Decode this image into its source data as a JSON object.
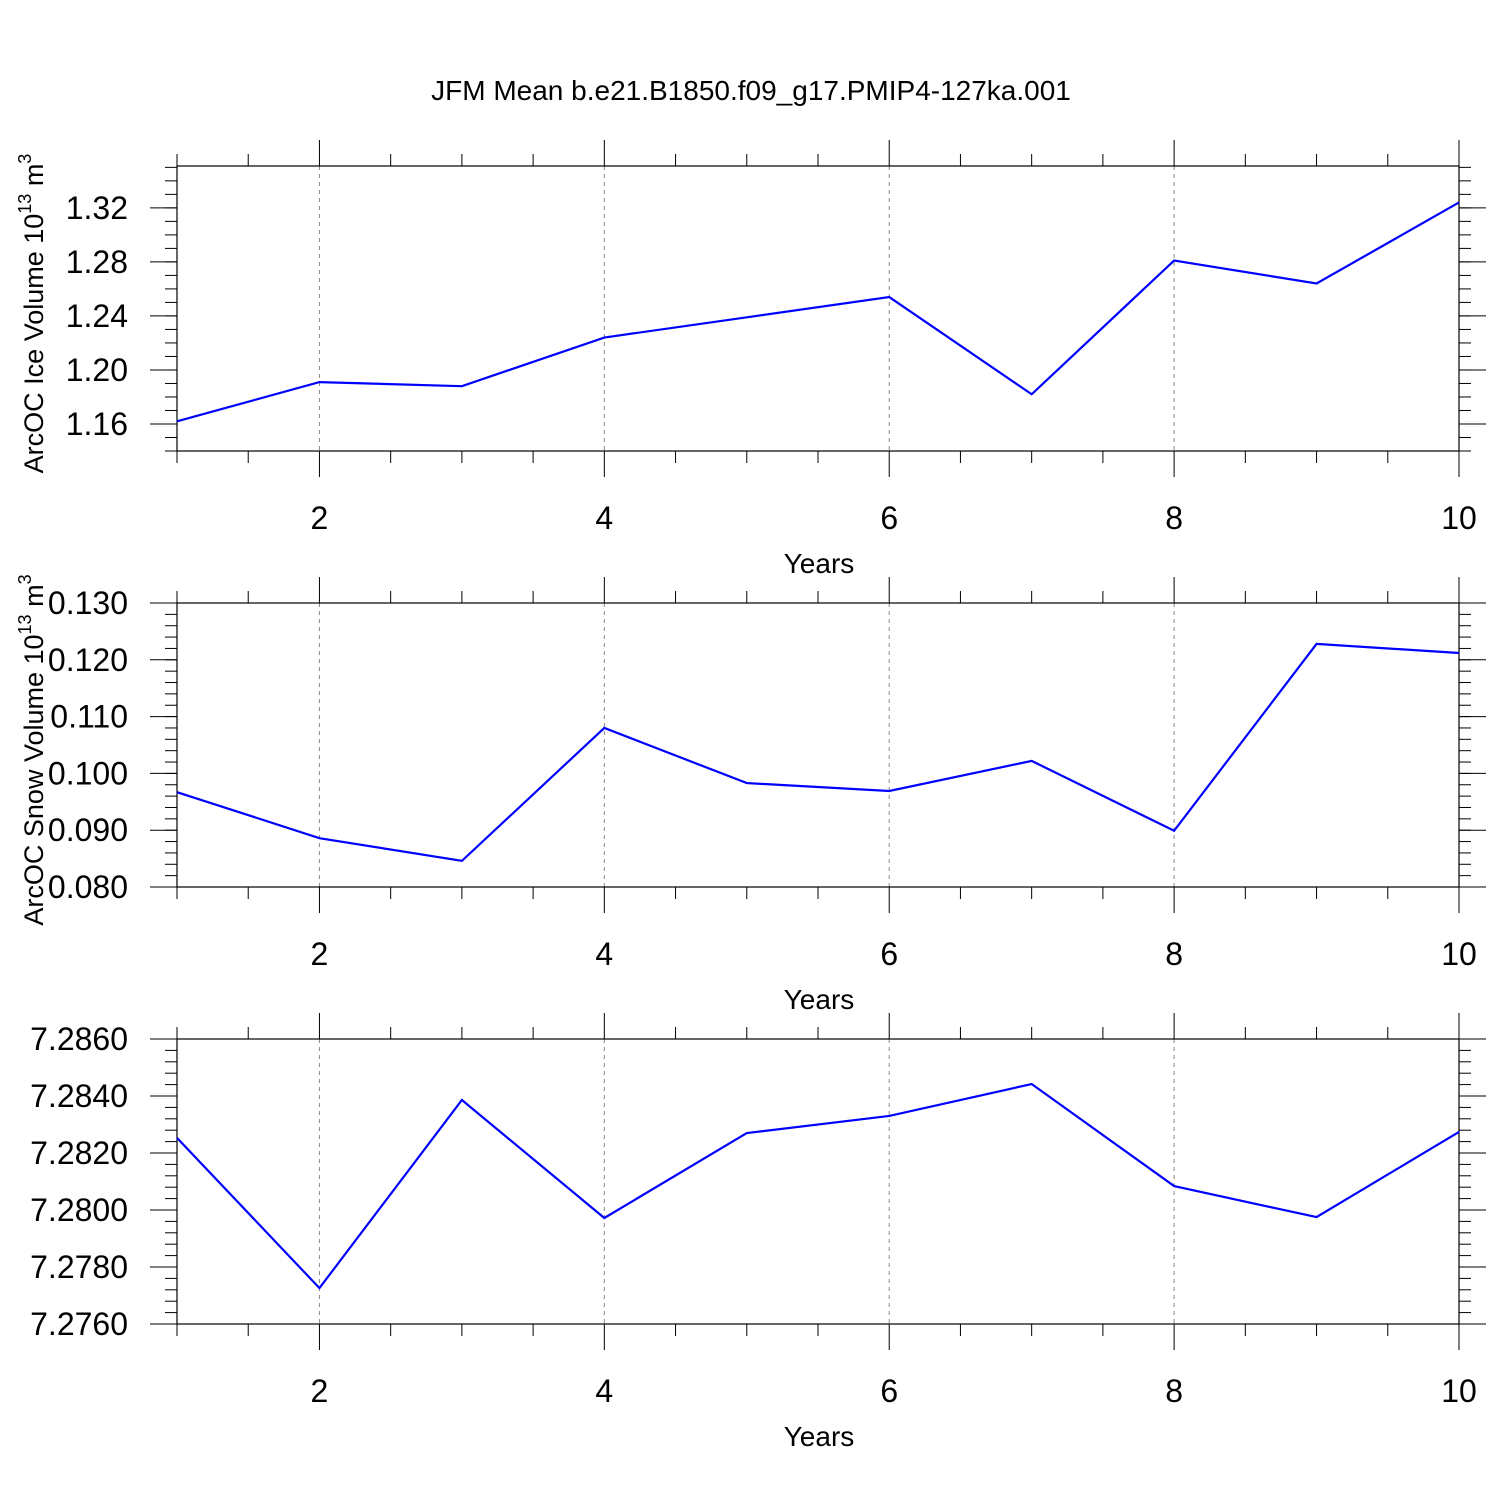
{
  "title": "JFM Mean b.e21.B1850.f09_g17.PMIP4-127ka.001",
  "line_color": "#0000ff",
  "chart_data": [
    {
      "type": "line",
      "xlabel": "Years",
      "ylabel_parts": [
        "ArcOC Ice Volume 10",
        "13",
        " m",
        "3"
      ],
      "xlim": [
        1,
        10
      ],
      "ylim": [
        1.14,
        1.351
      ],
      "xticks": [
        2,
        4,
        6,
        8,
        10
      ],
      "yticks": [
        "1.16",
        "1.20",
        "1.24",
        "1.28",
        "1.32"
      ],
      "grid": "dashed vertical at major x ticks",
      "x": [
        1,
        2,
        3,
        4,
        5,
        6,
        7,
        8,
        9,
        10
      ],
      "y": [
        1.162,
        1.191,
        1.188,
        1.224,
        1.239,
        1.254,
        1.182,
        1.281,
        1.264,
        1.324
      ]
    },
    {
      "type": "line",
      "xlabel": "Years",
      "ylabel_parts": [
        "ArcOC Snow Volume 10",
        "13",
        " m",
        "3"
      ],
      "xlim": [
        1,
        10
      ],
      "ylim": [
        0.08,
        0.13
      ],
      "xticks": [
        2,
        4,
        6,
        8,
        10
      ],
      "yticks": [
        "0.080",
        "0.090",
        "0.100",
        "0.110",
        "0.120",
        "0.130"
      ],
      "grid": "dashed vertical at major x ticks",
      "x": [
        1,
        2,
        3,
        4,
        5,
        6,
        7,
        8,
        9,
        10
      ],
      "y": [
        0.0967,
        0.0886,
        0.0846,
        0.108,
        0.0983,
        0.0969,
        0.1022,
        0.0899,
        0.1228,
        0.1212
      ]
    },
    {
      "type": "line",
      "xlabel": "Years",
      "xlim": [
        1,
        10
      ],
      "ylim": [
        7.276,
        7.286
      ],
      "xticks": [
        2,
        4,
        6,
        8,
        10
      ],
      "yticks": [
        "7.2760",
        "7.2780",
        "7.2800",
        "7.2820",
        "7.2840",
        "7.2860"
      ],
      "grid": "dashed vertical at major x ticks",
      "x": [
        1,
        2,
        3,
        4,
        5,
        6,
        7,
        8,
        9,
        10
      ],
      "y": [
        7.28253,
        7.27726,
        7.28386,
        7.27972,
        7.2827,
        7.2833,
        7.28442,
        7.28084,
        7.27975,
        7.28274
      ]
    }
  ]
}
